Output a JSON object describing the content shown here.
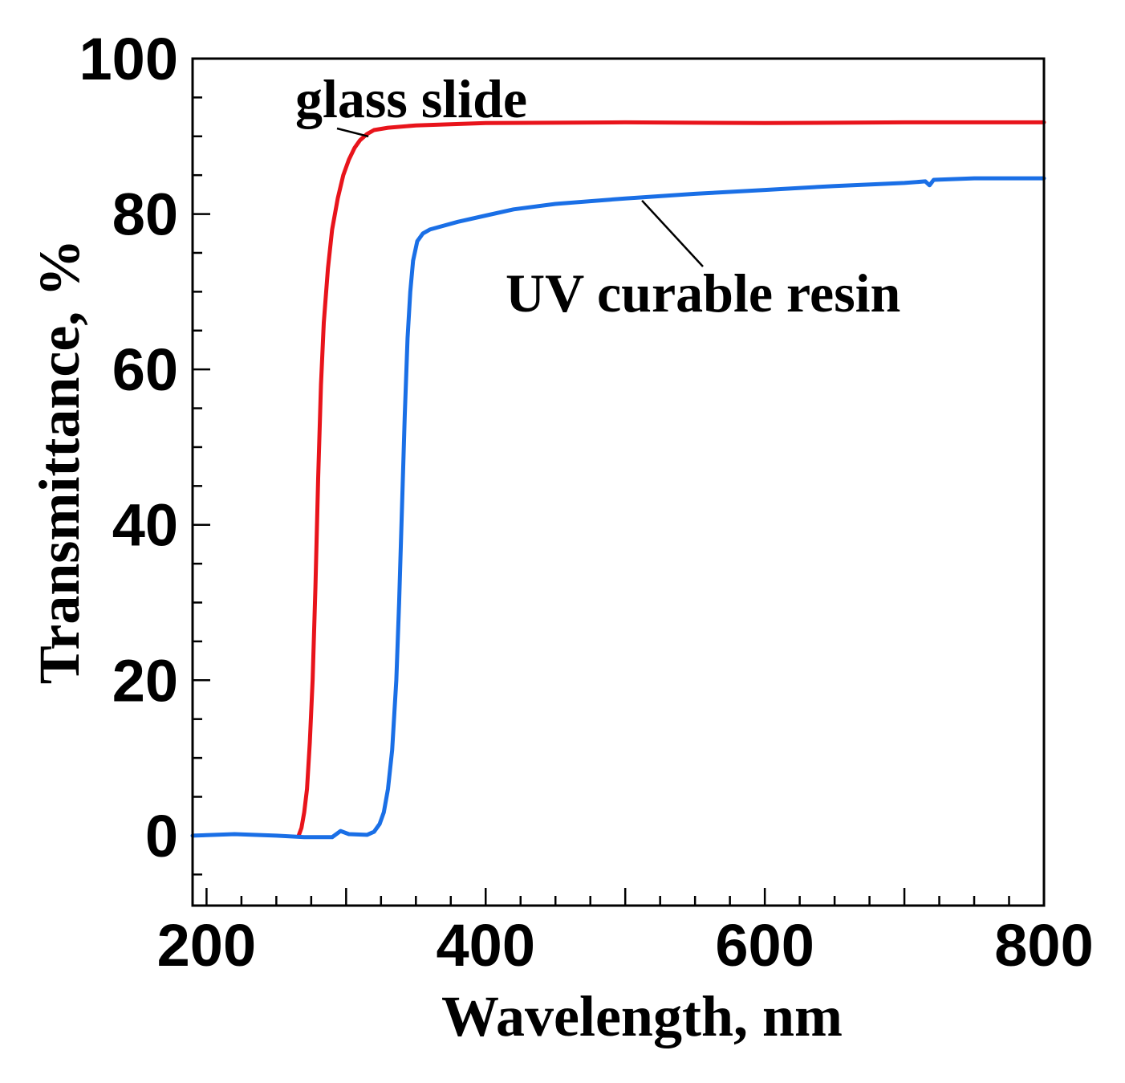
{
  "chart_data": {
    "type": "line",
    "title": "",
    "xlabel": "Wavelength, nm",
    "ylabel": "Transmittance, %",
    "xlim": [
      190,
      800
    ],
    "ylim": [
      -9,
      100
    ],
    "xticks": [
      200,
      400,
      600,
      800
    ],
    "yticks": [
      0,
      20,
      40,
      60,
      80,
      100
    ],
    "x_minor_step": 25,
    "y_minor_step": 5,
    "grid": false,
    "legend": "none",
    "series": [
      {
        "name": "glass slide",
        "color": "#e8141b",
        "points": [
          [
            266,
            0
          ],
          [
            268,
            1
          ],
          [
            270,
            3
          ],
          [
            272,
            6
          ],
          [
            274,
            12
          ],
          [
            276,
            20
          ],
          [
            278,
            32
          ],
          [
            280,
            46
          ],
          [
            282,
            58
          ],
          [
            284,
            66
          ],
          [
            287,
            73
          ],
          [
            290,
            78
          ],
          [
            294,
            82
          ],
          [
            298,
            85
          ],
          [
            302,
            87
          ],
          [
            306,
            88.5
          ],
          [
            310,
            89.5
          ],
          [
            315,
            90.3
          ],
          [
            320,
            90.8
          ],
          [
            330,
            91.1
          ],
          [
            350,
            91.4
          ],
          [
            400,
            91.7
          ],
          [
            500,
            91.8
          ],
          [
            600,
            91.7
          ],
          [
            700,
            91.8
          ],
          [
            800,
            91.8
          ]
        ]
      },
      {
        "name": "UV curable resin",
        "color": "#1a6fe6",
        "points": [
          [
            190,
            0
          ],
          [
            220,
            0.2
          ],
          [
            250,
            0
          ],
          [
            270,
            -0.2
          ],
          [
            290,
            -0.2
          ],
          [
            296,
            0.6
          ],
          [
            302,
            0.2
          ],
          [
            315,
            0.1
          ],
          [
            320,
            0.5
          ],
          [
            324,
            1.5
          ],
          [
            327,
            3
          ],
          [
            330,
            6
          ],
          [
            333,
            11
          ],
          [
            336,
            20
          ],
          [
            338,
            30
          ],
          [
            340,
            42
          ],
          [
            342,
            54
          ],
          [
            344,
            64
          ],
          [
            346,
            70
          ],
          [
            348,
            74
          ],
          [
            351,
            76.5
          ],
          [
            355,
            77.5
          ],
          [
            360,
            78
          ],
          [
            380,
            79
          ],
          [
            400,
            79.8
          ],
          [
            420,
            80.6
          ],
          [
            450,
            81.3
          ],
          [
            500,
            82
          ],
          [
            550,
            82.6
          ],
          [
            600,
            83.1
          ],
          [
            650,
            83.6
          ],
          [
            700,
            84
          ],
          [
            715,
            84.2
          ],
          [
            718,
            83.7
          ],
          [
            721,
            84.4
          ],
          [
            750,
            84.6
          ],
          [
            800,
            84.6
          ]
        ]
      }
    ],
    "annotations": [
      {
        "text": "glass slide",
        "series": "glass slide",
        "target_x": 316
      },
      {
        "text": "UV curable resin",
        "series": "UV curable resin",
        "target_x": 512
      }
    ]
  }
}
